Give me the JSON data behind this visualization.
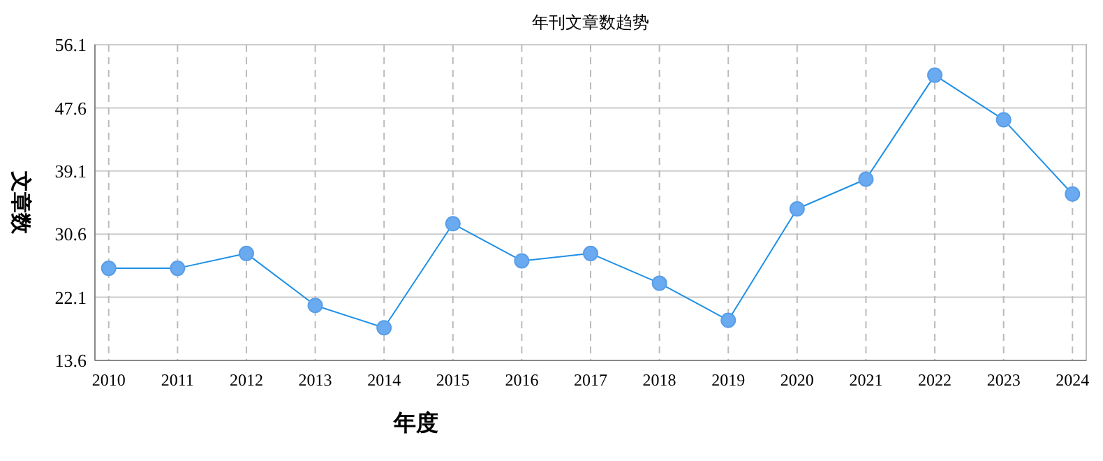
{
  "chart_data": {
    "type": "line",
    "title": "年刊文章数趋势",
    "xlabel": "年度",
    "ylabel": "文章数",
    "categories": [
      "2010",
      "2011",
      "2012",
      "2013",
      "2014",
      "2015",
      "2016",
      "2017",
      "2018",
      "2019",
      "2020",
      "2021",
      "2022",
      "2023",
      "2024"
    ],
    "series": [
      {
        "color": "#1e90e6",
        "values": [
          26,
          26,
          28,
          21,
          18,
          32,
          27,
          28,
          24,
          19,
          34,
          38,
          52,
          46,
          36
        ]
      }
    ],
    "ylim": [
      13.6,
      56.1
    ],
    "yticks": [
      13.6,
      22.1,
      30.6,
      39.1,
      47.6,
      56.1
    ],
    "grid": true,
    "marker": "circle",
    "line_style": "solid"
  }
}
